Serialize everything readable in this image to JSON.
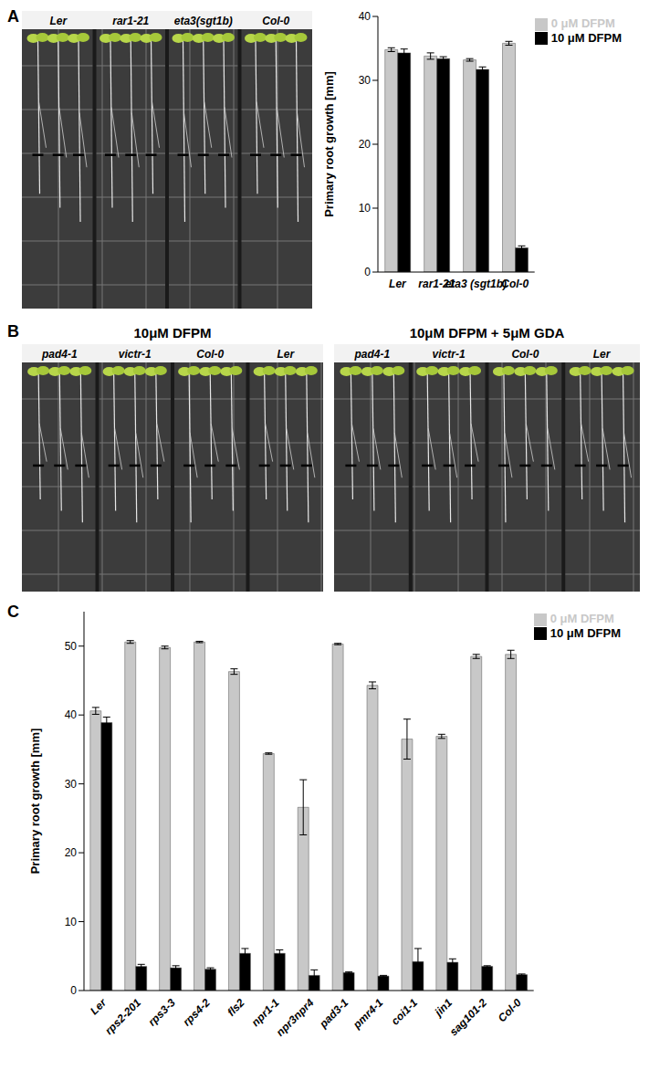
{
  "chart_data": [
    {
      "panel": "A",
      "type": "bar",
      "categories": [
        "Ler",
        "rar1-21",
        "eta3 (sgt1b)",
        "Col-0"
      ],
      "series": [
        {
          "name": "0 μM DFPM",
          "color": "#c8c8c8",
          "values": [
            34.8,
            33.8,
            33.2,
            35.8
          ],
          "errors": [
            0.3,
            0.5,
            0.2,
            0.3
          ]
        },
        {
          "name": "10 μM DFPM",
          "color": "#000000",
          "values": [
            34.3,
            33.4,
            31.7,
            3.8
          ],
          "errors": [
            0.6,
            0.3,
            0.4,
            0.3
          ]
        }
      ],
      "y_label": "Primary root growth [mm]",
      "ylim": [
        0,
        40
      ],
      "yticks": [
        0,
        10,
        20,
        30,
        40
      ],
      "legend": "upper right"
    },
    {
      "panel": "C",
      "type": "bar",
      "categories": [
        "Ler",
        "rps2-201",
        "rps3-3",
        "rps4-2",
        "fls2",
        "npr1-1",
        "npr3npr4",
        "pad3-1",
        "pmr4-1",
        "coi1-1",
        "jin1",
        "sag101-2",
        "Col-0"
      ],
      "series": [
        {
          "name": "0 μM DFPM",
          "color": "#c8c8c8",
          "values": [
            40.6,
            50.6,
            49.8,
            50.6,
            46.3,
            34.4,
            26.6,
            50.3,
            44.3,
            36.5,
            36.9,
            48.5,
            48.8
          ],
          "errors": [
            0.5,
            0.2,
            0.2,
            0.1,
            0.4,
            0.1,
            4.0,
            0.1,
            0.5,
            2.9,
            0.3,
            0.3,
            0.6
          ]
        },
        {
          "name": "10 μM DFPM",
          "color": "#000000",
          "values": [
            38.9,
            3.5,
            3.3,
            3.1,
            5.4,
            5.4,
            2.2,
            2.6,
            2.1,
            4.2,
            4.1,
            3.5,
            2.3
          ],
          "errors": [
            0.8,
            0.3,
            0.3,
            0.2,
            0.7,
            0.5,
            0.8,
            0.1,
            0.1,
            1.9,
            0.5,
            0.1,
            0.1
          ]
        }
      ],
      "y_label": "Primary root growth [mm]",
      "ylim": [
        0,
        55
      ],
      "yticks": [
        0,
        10,
        20,
        30,
        40,
        50
      ],
      "legend": "upper right"
    }
  ],
  "photos": [
    {
      "panel": "A",
      "lanes": [
        "Ler",
        "rar1-21",
        "eta3(sgt1b)",
        "Col-0"
      ]
    },
    {
      "panel": "B",
      "title": "10μM DFPM",
      "lanes": [
        "pad4-1",
        "victr-1",
        "Col-0",
        "Ler"
      ]
    },
    {
      "title": "10μM DFPM + 5μM GDA",
      "lanes": [
        "pad4-1",
        "victr-1",
        "Col-0",
        "Ler"
      ]
    }
  ]
}
